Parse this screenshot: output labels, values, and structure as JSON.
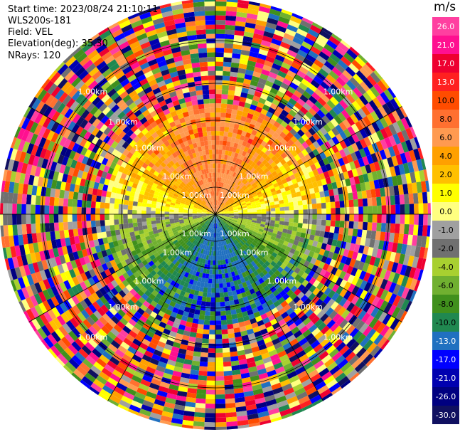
{
  "header": {
    "start_time": "Start time: 2023/08/24 21:10:11",
    "instrument": "WLS200s-181",
    "field": "Field: VEL",
    "elevation": "Elevation(deg): 35.30",
    "nrays": "NRays: 120"
  },
  "colorbar": {
    "unit": "m/s",
    "ticks": [
      "26.0",
      "21.0",
      "17.0",
      "13.0",
      "10.0",
      "8.0",
      "6.0",
      "4.0",
      "2.0",
      "1.0",
      "0.0",
      "-1.0",
      "-2.0",
      "-4.0",
      "-6.0",
      "-8.0",
      "-10.0",
      "-13.0",
      "-17.0",
      "-21.0",
      "-26.0",
      "-30.0"
    ],
    "colors": [
      "#ff3fa0",
      "#ff1090",
      "#ee0030",
      "#ff2020",
      "#ff4c00",
      "#ff7030",
      "#ff9a50",
      "#ffa000",
      "#ffc000",
      "#ffff00",
      "#ffff80",
      "#a0a0a0",
      "#707070",
      "#a8d030",
      "#70b030",
      "#40901c",
      "#208850",
      "#2070c0",
      "#0000ff",
      "#0000b0",
      "#000080",
      "#101060"
    ]
  },
  "chart_data": {
    "type": "ppi-scan",
    "field": "VEL",
    "units": "m/s",
    "nrays": 120,
    "elevation_deg": 35.3,
    "range_ring_labels": [
      "1.00km",
      "1.00km",
      "1.00km",
      "1.00km",
      "1.00km"
    ],
    "spokes_deg": [
      0,
      30,
      60,
      90,
      120,
      150,
      180,
      210,
      240,
      270,
      300,
      330
    ],
    "color_scale": {
      "min": -30.0,
      "max": 26.0
    }
  }
}
